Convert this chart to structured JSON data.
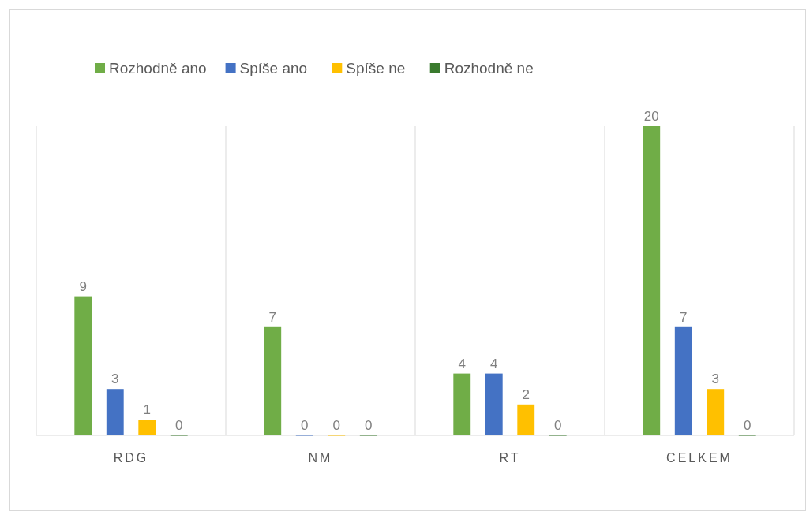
{
  "chart_data": {
    "type": "bar",
    "categories": [
      "RDG",
      "NM",
      "RT",
      "CELKEM"
    ],
    "series": [
      {
        "name": "Rozhodně ano",
        "color": "#70ad47",
        "values": [
          9,
          7,
          4,
          20
        ]
      },
      {
        "name": "Spíše ano",
        "color": "#4472c4",
        "values": [
          3,
          0,
          4,
          7
        ]
      },
      {
        "name": "Spíše ne",
        "color": "#ffc000",
        "values": [
          1,
          0,
          2,
          3
        ]
      },
      {
        "name": "Rozhodně ne",
        "color": "#3a7a2e",
        "values": [
          0,
          0,
          0,
          0
        ]
      }
    ],
    "data_labels": true,
    "grid": "x",
    "legend": "top",
    "tick_labels": "x"
  }
}
